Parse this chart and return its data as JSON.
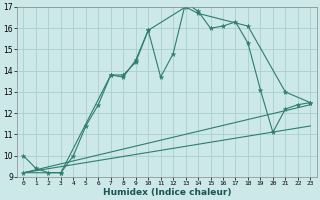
{
  "xlabel": "Humidex (Indice chaleur)",
  "ylabel": "",
  "xlim": [
    -0.5,
    23.5
  ],
  "ylim": [
    9,
    17
  ],
  "xticks": [
    0,
    1,
    2,
    3,
    4,
    5,
    6,
    7,
    8,
    9,
    10,
    11,
    12,
    13,
    14,
    15,
    16,
    17,
    18,
    19,
    20,
    21,
    22,
    23
  ],
  "yticks": [
    9,
    10,
    11,
    12,
    13,
    14,
    15,
    16,
    17
  ],
  "background_color": "#cce8e8",
  "grid_color": "#aacfcf",
  "line_color": "#2e7d6e",
  "lines": [
    {
      "x": [
        0,
        1,
        2,
        3,
        4,
        5,
        6,
        7,
        8,
        9,
        10,
        11,
        12,
        13,
        14,
        15,
        16,
        17,
        18,
        19,
        20,
        21,
        22,
        23
      ],
      "y": [
        10.0,
        9.4,
        9.2,
        9.2,
        10.0,
        11.4,
        12.4,
        13.8,
        13.8,
        14.4,
        15.9,
        13.7,
        14.8,
        17.2,
        16.8,
        16.0,
        16.1,
        16.3,
        15.3,
        13.1,
        11.1,
        12.2,
        12.4,
        12.5
      ],
      "has_markers": true
    },
    {
      "x": [
        0,
        3,
        7,
        8,
        9,
        10,
        13,
        14,
        18,
        21,
        23
      ],
      "y": [
        9.2,
        9.2,
        13.8,
        13.7,
        14.5,
        15.9,
        17.0,
        16.7,
        16.1,
        13.0,
        12.5
      ],
      "has_markers": true
    },
    {
      "x": [
        0,
        23
      ],
      "y": [
        9.2,
        11.4
      ],
      "has_markers": false
    },
    {
      "x": [
        0,
        23
      ],
      "y": [
        9.2,
        12.4
      ],
      "has_markers": false
    }
  ]
}
